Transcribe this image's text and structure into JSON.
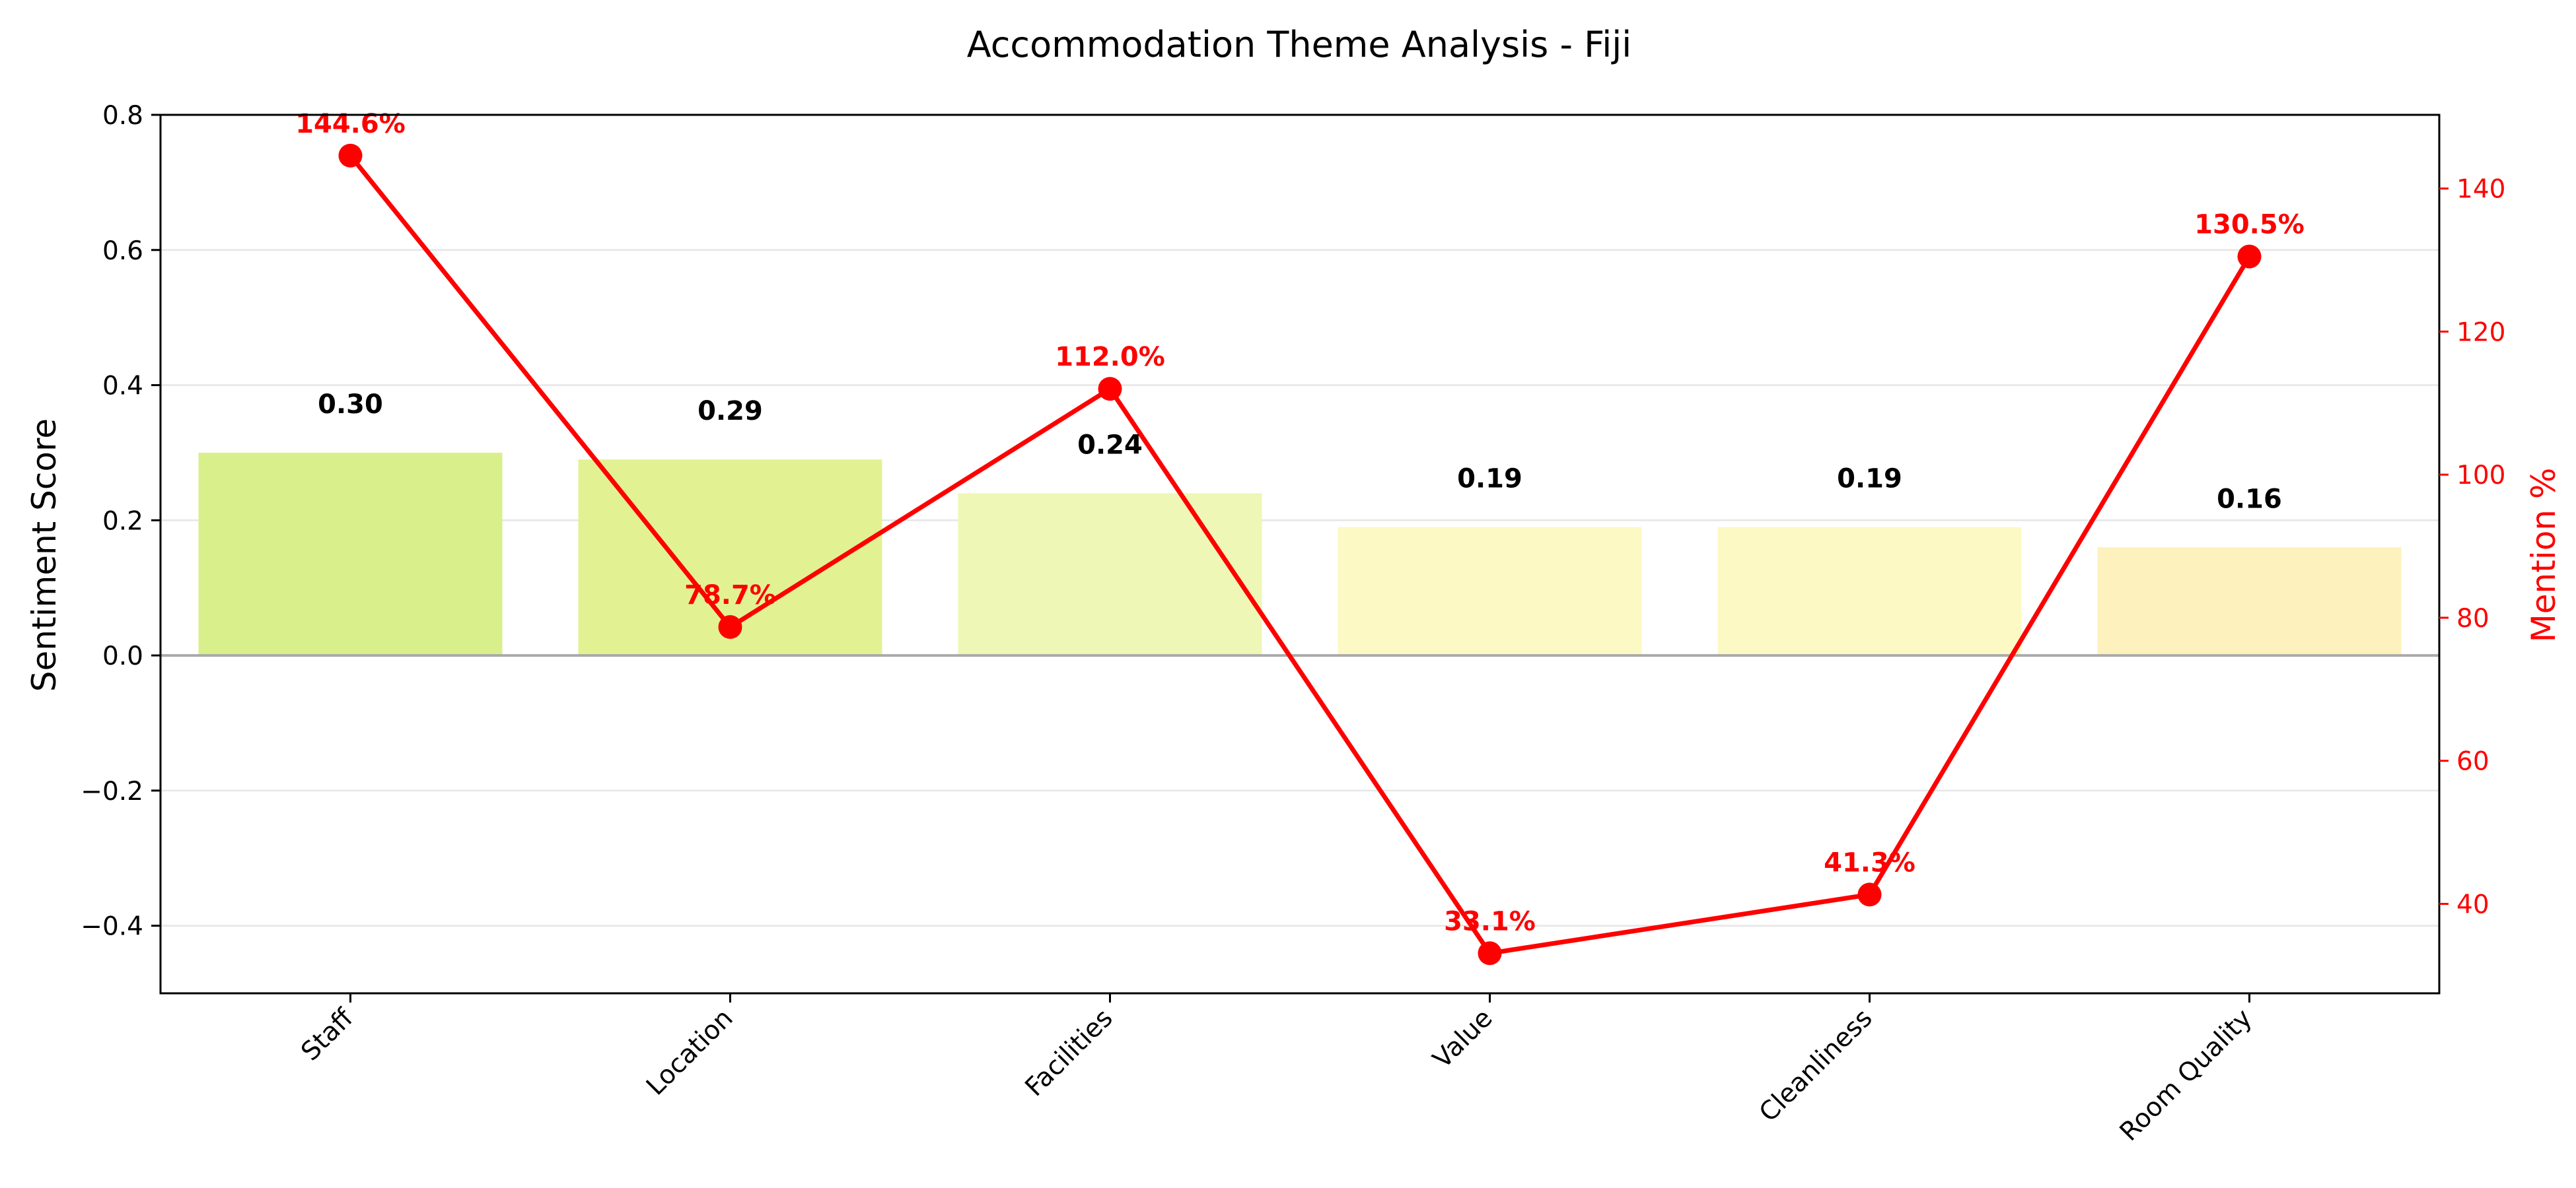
{
  "chart_data": {
    "type": "bar",
    "title": "Accommodation Theme Analysis - Fiji",
    "categories": [
      "Staff",
      "Location",
      "Facilities",
      "Value",
      "Cleanliness",
      "Room Quality"
    ],
    "bar_series": {
      "name": "Sentiment Score",
      "values": [
        0.3,
        0.29,
        0.24,
        0.19,
        0.19,
        0.16
      ],
      "labels": [
        "0.30",
        "0.29",
        "0.24",
        "0.19",
        "0.19",
        "0.16"
      ],
      "colors": [
        "#d9ef8b",
        "#e2f293",
        "#eef7b5",
        "#fcf9c4",
        "#fcf9c4",
        "#fdf1bd"
      ]
    },
    "line_series": {
      "name": "Mention %",
      "values": [
        144.6,
        78.7,
        112.0,
        33.1,
        41.3,
        130.5
      ],
      "labels": [
        "144.6%",
        "78.7%",
        "112.0%",
        "33.1%",
        "41.3%",
        "130.5%"
      ],
      "color": "#ff0000"
    },
    "y_left": {
      "label": "Sentiment Score",
      "lim": [
        -0.5,
        0.8
      ],
      "ticks": [
        -0.4,
        -0.2,
        0.0,
        0.2,
        0.4,
        0.6,
        0.8
      ],
      "tick_labels": [
        "−0.4",
        "−0.2",
        "0.0",
        "0.2",
        "0.4",
        "0.6",
        "0.8"
      ]
    },
    "y_right": {
      "label": "Mention %",
      "lim": [
        27.5,
        150.3
      ],
      "ticks": [
        40,
        60,
        80,
        100,
        120,
        140
      ],
      "tick_labels": [
        "40",
        "60",
        "80",
        "100",
        "120",
        "140"
      ],
      "color": "#ff0000"
    },
    "grid": "horizontal",
    "zero_line": true
  }
}
